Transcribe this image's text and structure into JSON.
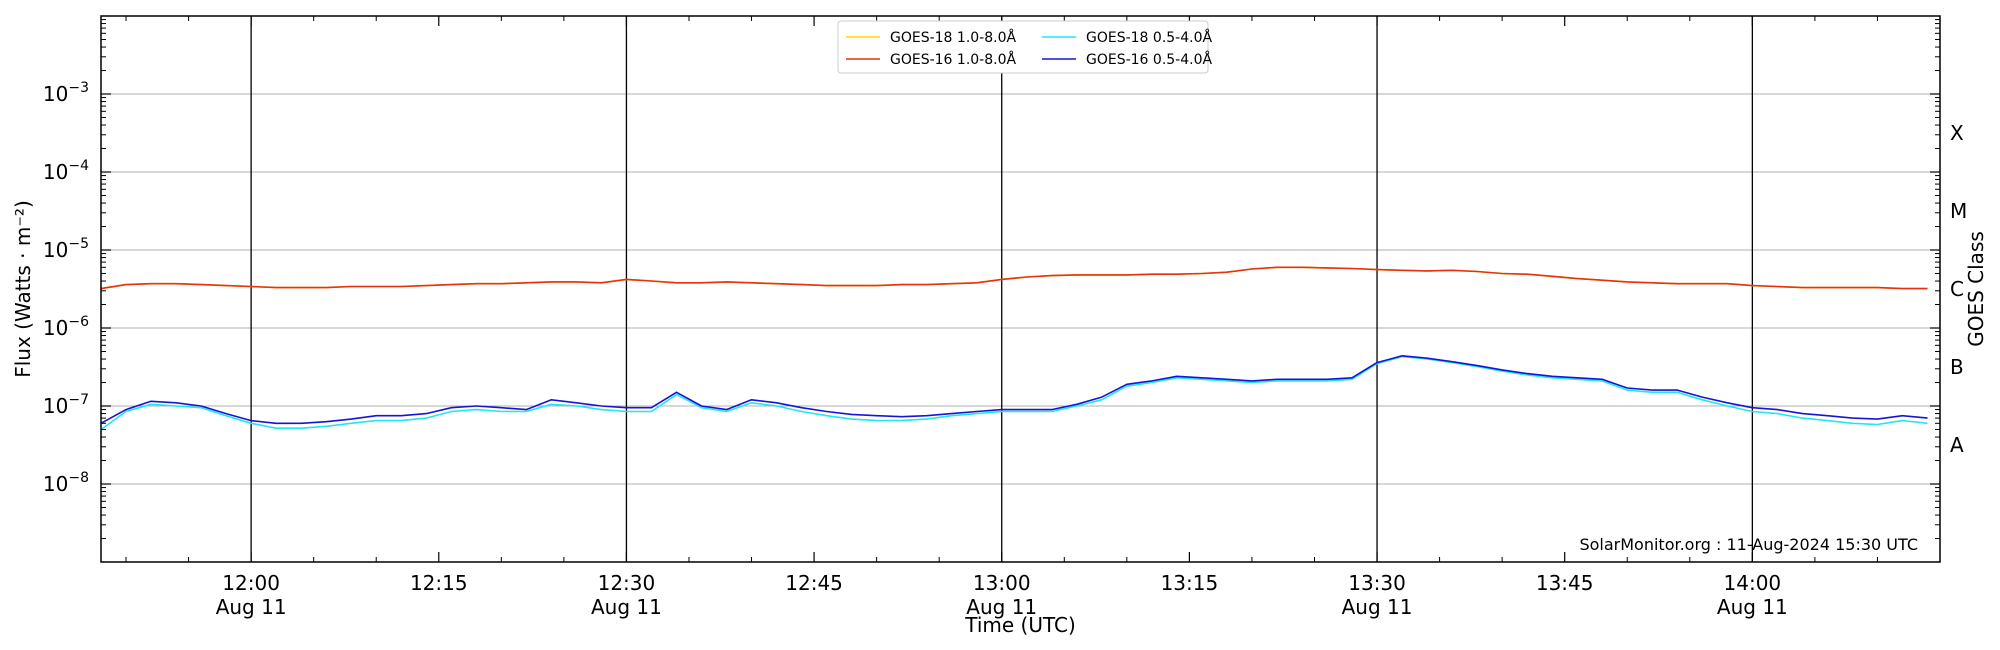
{
  "chart_data": {
    "type": "line",
    "xlabel": "Time (UTC)",
    "ylabel": "Flux (Watts · m⁻²)",
    "right_axis_label": "GOES Class",
    "y_scale": "log",
    "ylim": [
      1e-09,
      0.01
    ],
    "xlim": [
      "11:48",
      "14:15"
    ],
    "grid": "horizontal at decades",
    "legend_position": "top-center",
    "credit": "SolarMonitor.org : 11-Aug-2024 15:30 UTC",
    "y_ticks": [
      {
        "value": 1e-08,
        "base": "10",
        "exp": "−8"
      },
      {
        "value": 1e-07,
        "base": "10",
        "exp": "−7"
      },
      {
        "value": 1e-06,
        "base": "10",
        "exp": "−6"
      },
      {
        "value": 1e-05,
        "base": "10",
        "exp": "−5"
      },
      {
        "value": 0.0001,
        "base": "10",
        "exp": "−4"
      },
      {
        "value": 0.001,
        "base": "10",
        "exp": "−3"
      }
    ],
    "x_ticks": [
      {
        "time": "12:00",
        "label": "12:00",
        "date": "Aug 11",
        "vline": true
      },
      {
        "time": "12:15",
        "label": "12:15",
        "date": "",
        "vline": false
      },
      {
        "time": "12:30",
        "label": "12:30",
        "date": "Aug 11",
        "vline": true
      },
      {
        "time": "12:45",
        "label": "12:45",
        "date": "",
        "vline": false
      },
      {
        "time": "13:00",
        "label": "13:00",
        "date": "Aug 11",
        "vline": true
      },
      {
        "time": "13:15",
        "label": "13:15",
        "date": "",
        "vline": false
      },
      {
        "time": "13:30",
        "label": "13:30",
        "date": "Aug 11",
        "vline": true
      },
      {
        "time": "13:45",
        "label": "13:45",
        "date": "",
        "vline": false
      },
      {
        "time": "14:00",
        "label": "14:00",
        "date": "Aug 11",
        "vline": true
      }
    ],
    "goes_classes": [
      {
        "label": "A",
        "lower": 1e-08
      },
      {
        "label": "B",
        "lower": 1e-07
      },
      {
        "label": "C",
        "lower": 1e-06
      },
      {
        "label": "M",
        "lower": 1e-05
      },
      {
        "label": "X",
        "lower": 0.0001
      }
    ],
    "x": [
      "11:48",
      "11:50",
      "11:52",
      "11:54",
      "11:56",
      "11:58",
      "12:00",
      "12:02",
      "12:04",
      "12:06",
      "12:08",
      "12:10",
      "12:12",
      "12:14",
      "12:16",
      "12:18",
      "12:20",
      "12:22",
      "12:24",
      "12:26",
      "12:28",
      "12:30",
      "12:32",
      "12:34",
      "12:36",
      "12:38",
      "12:40",
      "12:42",
      "12:44",
      "12:46",
      "12:48",
      "12:50",
      "12:52",
      "12:54",
      "12:56",
      "12:58",
      "13:00",
      "13:02",
      "13:04",
      "13:06",
      "13:08",
      "13:10",
      "13:12",
      "13:14",
      "13:16",
      "13:18",
      "13:20",
      "13:22",
      "13:24",
      "13:26",
      "13:28",
      "13:30",
      "13:32",
      "13:34",
      "13:36",
      "13:38",
      "13:40",
      "13:42",
      "13:44",
      "13:46",
      "13:48",
      "13:50",
      "13:52",
      "13:54",
      "13:56",
      "13:58",
      "14:00",
      "14:02",
      "14:04",
      "14:06",
      "14:08",
      "14:10",
      "14:12",
      "14:14"
    ],
    "series": [
      {
        "name": "GOES-18 1.0-8.0Å",
        "color": "#FFD700",
        "values": [
          3.2e-06,
          3.6e-06,
          3.7e-06,
          3.7e-06,
          3.6e-06,
          3.5e-06,
          3.4e-06,
          3.3e-06,
          3.3e-06,
          3.3e-06,
          3.4e-06,
          3.4e-06,
          3.4e-06,
          3.5e-06,
          3.6e-06,
          3.7e-06,
          3.7e-06,
          3.8e-06,
          3.9e-06,
          3.9e-06,
          3.8e-06,
          4.2e-06,
          4e-06,
          3.8e-06,
          3.8e-06,
          3.9e-06,
          3.8e-06,
          3.7e-06,
          3.6e-06,
          3.5e-06,
          3.5e-06,
          3.5e-06,
          3.6e-06,
          3.6e-06,
          3.7e-06,
          3.8e-06,
          4.2e-06,
          4.5e-06,
          4.7e-06,
          4.8e-06,
          4.8e-06,
          4.8e-06,
          4.9e-06,
          4.9e-06,
          5e-06,
          5.2e-06,
          5.7e-06,
          6e-06,
          6e-06,
          5.9e-06,
          5.8e-06,
          5.6e-06,
          5.5e-06,
          5.4e-06,
          5.5e-06,
          5.3e-06,
          5e-06,
          4.9e-06,
          4.6e-06,
          4.3e-06,
          4.1e-06,
          3.9e-06,
          3.8e-06,
          3.7e-06,
          3.7e-06,
          3.7e-06,
          3.5e-06,
          3.4e-06,
          3.3e-06,
          3.3e-06,
          3.3e-06,
          3.3e-06,
          3.2e-06,
          3.2e-06
        ]
      },
      {
        "name": "GOES-16 1.0-8.0Å",
        "color": "#E8310F",
        "values": [
          3.2e-06,
          3.6e-06,
          3.7e-06,
          3.7e-06,
          3.6e-06,
          3.5e-06,
          3.4e-06,
          3.3e-06,
          3.3e-06,
          3.3e-06,
          3.4e-06,
          3.4e-06,
          3.4e-06,
          3.5e-06,
          3.6e-06,
          3.7e-06,
          3.7e-06,
          3.8e-06,
          3.9e-06,
          3.9e-06,
          3.8e-06,
          4.2e-06,
          4e-06,
          3.8e-06,
          3.8e-06,
          3.9e-06,
          3.8e-06,
          3.7e-06,
          3.6e-06,
          3.5e-06,
          3.5e-06,
          3.5e-06,
          3.6e-06,
          3.6e-06,
          3.7e-06,
          3.8e-06,
          4.2e-06,
          4.5e-06,
          4.7e-06,
          4.8e-06,
          4.8e-06,
          4.8e-06,
          4.9e-06,
          4.9e-06,
          5e-06,
          5.2e-06,
          5.7e-06,
          6e-06,
          6e-06,
          5.9e-06,
          5.8e-06,
          5.6e-06,
          5.5e-06,
          5.4e-06,
          5.5e-06,
          5.3e-06,
          5e-06,
          4.9e-06,
          4.6e-06,
          4.3e-06,
          4.1e-06,
          3.9e-06,
          3.8e-06,
          3.7e-06,
          3.7e-06,
          3.7e-06,
          3.5e-06,
          3.4e-06,
          3.3e-06,
          3.3e-06,
          3.3e-06,
          3.3e-06,
          3.2e-06,
          3.2e-06
        ]
      },
      {
        "name": "GOES-18 0.5-4.0Å",
        "color": "#22E6F0",
        "values": [
          5e-08,
          8.5e-08,
          1.05e-07,
          1e-07,
          9.5e-08,
          7.5e-08,
          6e-08,
          5.2e-08,
          5.2e-08,
          5.5e-08,
          6e-08,
          6.5e-08,
          6.5e-08,
          7e-08,
          8.5e-08,
          9e-08,
          8.5e-08,
          8.5e-08,
          1.05e-07,
          1e-07,
          9e-08,
          8.5e-08,
          8.5e-08,
          1.4e-07,
          9.5e-08,
          8.5e-08,
          1.1e-07,
          1e-07,
          8.5e-08,
          7.5e-08,
          6.8e-08,
          6.5e-08,
          6.5e-08,
          6.8e-08,
          7.5e-08,
          8e-08,
          8.5e-08,
          8.5e-08,
          8.5e-08,
          1e-07,
          1.2e-07,
          1.8e-07,
          2e-07,
          2.3e-07,
          2.2e-07,
          2.1e-07,
          2e-07,
          2.1e-07,
          2.1e-07,
          2.1e-07,
          2.2e-07,
          3.5e-07,
          4.3e-07,
          4e-07,
          3.6e-07,
          3.2e-07,
          2.8e-07,
          2.5e-07,
          2.3e-07,
          2.2e-07,
          2.1e-07,
          1.6e-07,
          1.5e-07,
          1.5e-07,
          1.2e-07,
          1e-07,
          8.5e-08,
          8e-08,
          7e-08,
          6.5e-08,
          6e-08,
          5.8e-08,
          6.5e-08,
          6e-08
        ]
      },
      {
        "name": "GOES-16 0.5-4.0Å",
        "color": "#1515D8",
        "values": [
          6e-08,
          9e-08,
          1.15e-07,
          1.1e-07,
          1e-07,
          8e-08,
          6.5e-08,
          6e-08,
          6e-08,
          6.3e-08,
          6.8e-08,
          7.5e-08,
          7.5e-08,
          8e-08,
          9.5e-08,
          1e-07,
          9.5e-08,
          9e-08,
          1.2e-07,
          1.1e-07,
          1e-07,
          9.5e-08,
          9.5e-08,
          1.5e-07,
          1e-07,
          9e-08,
          1.2e-07,
          1.1e-07,
          9.5e-08,
          8.5e-08,
          7.8e-08,
          7.5e-08,
          7.3e-08,
          7.5e-08,
          8e-08,
          8.5e-08,
          9e-08,
          9e-08,
          9e-08,
          1.05e-07,
          1.3e-07,
          1.9e-07,
          2.1e-07,
          2.4e-07,
          2.3e-07,
          2.2e-07,
          2.1e-07,
          2.2e-07,
          2.2e-07,
          2.2e-07,
          2.3e-07,
          3.6e-07,
          4.4e-07,
          4.1e-07,
          3.7e-07,
          3.3e-07,
          2.9e-07,
          2.6e-07,
          2.4e-07,
          2.3e-07,
          2.2e-07,
          1.7e-07,
          1.6e-07,
          1.6e-07,
          1.3e-07,
          1.1e-07,
          9.5e-08,
          9e-08,
          8e-08,
          7.5e-08,
          7e-08,
          6.8e-08,
          7.5e-08,
          7e-08
        ]
      }
    ]
  }
}
